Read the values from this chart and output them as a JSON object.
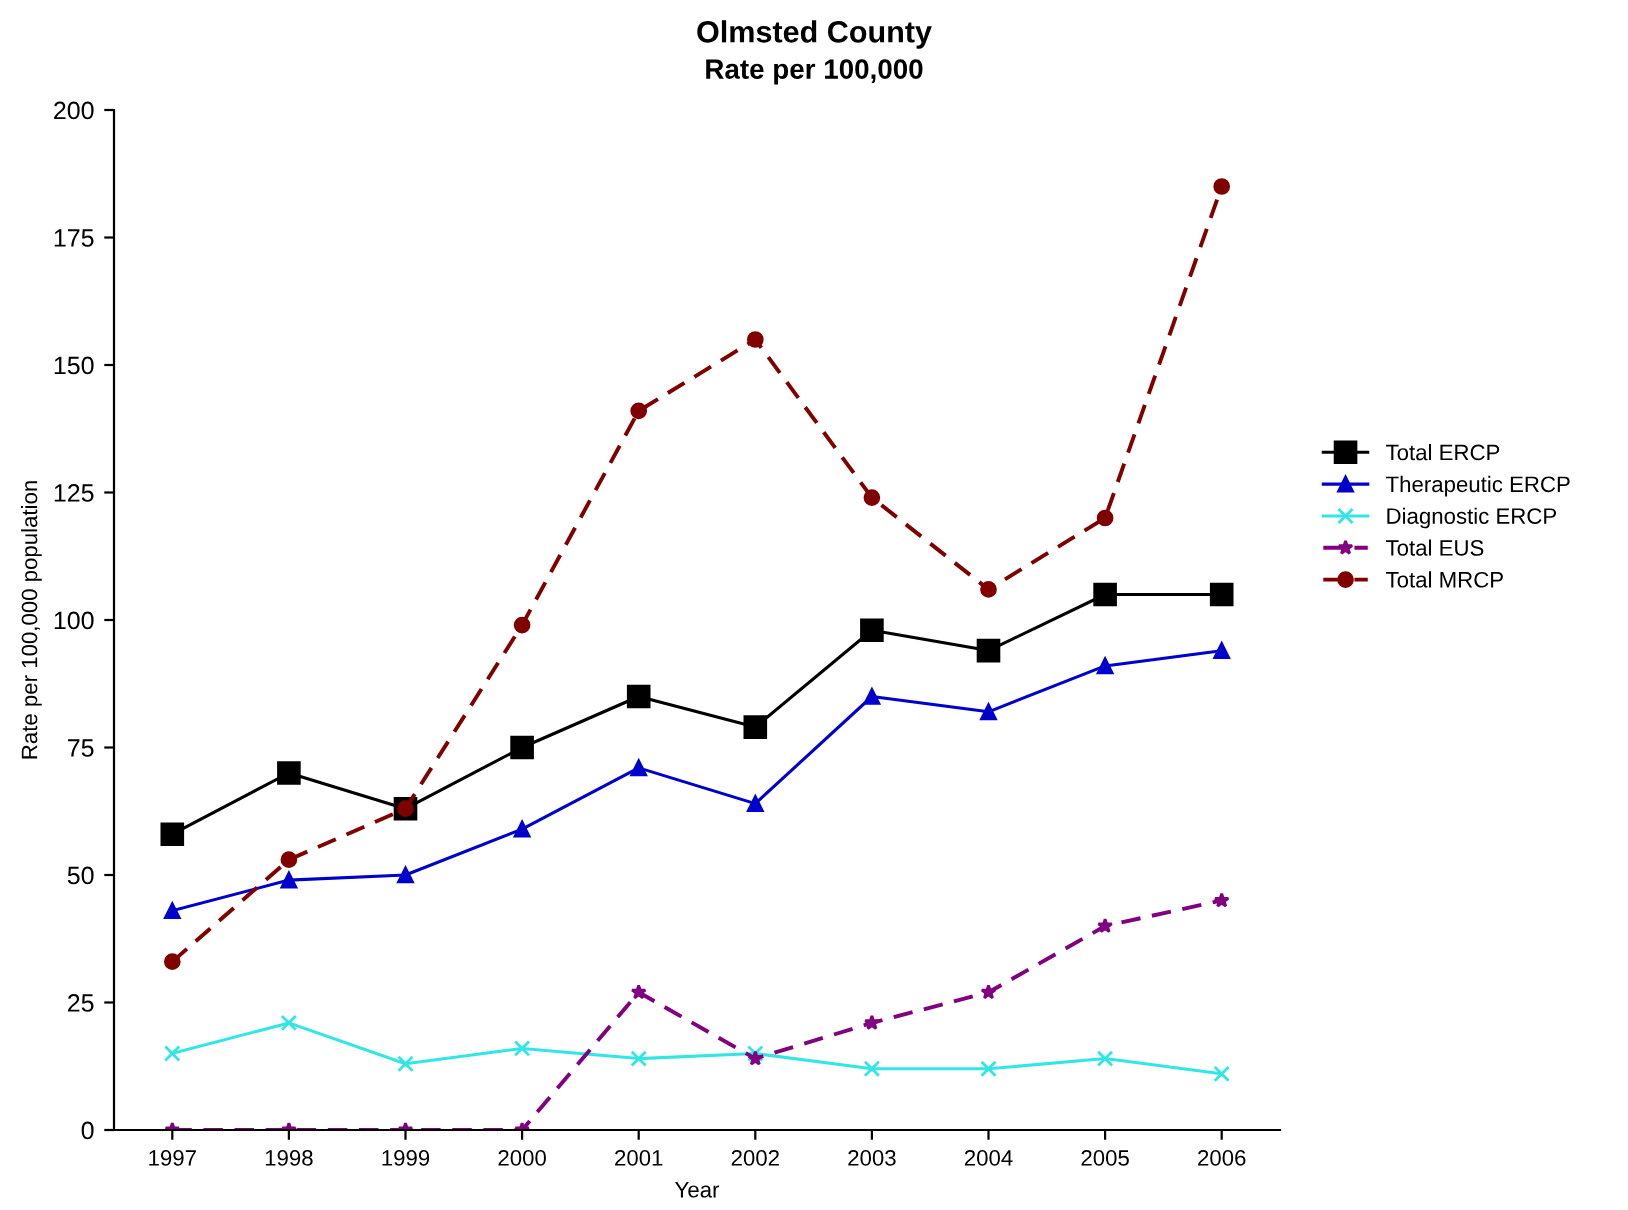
{
  "chart_data": {
    "type": "line",
    "title": "Olmsted County",
    "subtitle": "Rate per 100,000",
    "xlabel": "Year",
    "ylabel": "Rate per 100,000 population",
    "categories": [
      "1997",
      "1998",
      "1999",
      "2000",
      "2001",
      "2002",
      "2003",
      "2004",
      "2005",
      "2006"
    ],
    "series": [
      {
        "name": "Total ERCP",
        "color": "#000000",
        "marker": "square",
        "line_style": "solid",
        "values": [
          58,
          70,
          63,
          75,
          85,
          79,
          98,
          94,
          105,
          105
        ]
      },
      {
        "name": "Therapeutic ERCP",
        "color": "#0000cc",
        "marker": "triangle",
        "line_style": "solid",
        "values": [
          43,
          49,
          50,
          59,
          71,
          64,
          85,
          82,
          91,
          94
        ]
      },
      {
        "name": "Diagnostic ERCP",
        "color": "#33e6e6",
        "marker": "cross",
        "line_style": "solid",
        "values": [
          15,
          21,
          13,
          16,
          14,
          15,
          12,
          12,
          14,
          11
        ]
      },
      {
        "name": "Total EUS",
        "color": "#800080",
        "marker": "star",
        "line_style": "dashed",
        "values": [
          0,
          0,
          0,
          0,
          27,
          14,
          21,
          27,
          40,
          45
        ]
      },
      {
        "name": "Total MRCP",
        "color": "#800000",
        "marker": "circle",
        "line_style": "dashed",
        "values": [
          33,
          53,
          63,
          99,
          141,
          155,
          124,
          106,
          120,
          185
        ]
      }
    ],
    "ylim": [
      0,
      200
    ],
    "yticks": [
      0,
      25,
      50,
      75,
      100,
      125,
      150,
      175,
      200
    ],
    "grid": false,
    "legend": "right"
  }
}
